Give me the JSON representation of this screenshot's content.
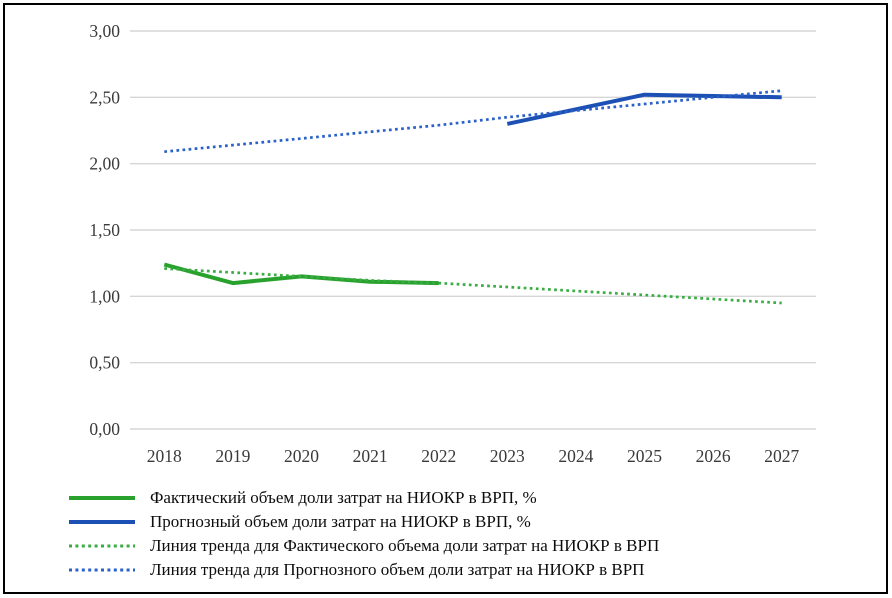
{
  "chart_data": {
    "type": "line",
    "x": [
      "2018",
      "2019",
      "2020",
      "2021",
      "2022",
      "2023",
      "2024",
      "2025",
      "2026",
      "2027"
    ],
    "series": [
      {
        "name": "Фактический объем доли затрат на НИОКР в ВРП, %",
        "color": "#28A22D",
        "style": "solid",
        "values": [
          1.24,
          1.1,
          1.15,
          1.11,
          1.1,
          null,
          null,
          null,
          null,
          null
        ]
      },
      {
        "name": "Прогнозный объем доли затрат на НИОКР в ВРП, %",
        "color": "#1C50B4",
        "style": "solid",
        "values": [
          null,
          null,
          null,
          null,
          null,
          2.3,
          2.41,
          2.52,
          2.51,
          2.5
        ]
      },
      {
        "name": "Линия тренда для Фактического объема доли затрат на НИОКР в ВРП",
        "color": "#39AC43",
        "style": "dotted",
        "values": [
          1.21,
          1.18,
          1.15,
          1.12,
          1.1,
          1.07,
          1.04,
          1.01,
          0.98,
          0.95
        ]
      },
      {
        "name": "Линия тренда для Прогнозного объем доли затрат на НИОКР в ВРП",
        "color": "#2A61C8",
        "style": "dotted",
        "values": [
          2.09,
          2.14,
          2.19,
          2.24,
          2.29,
          2.35,
          2.4,
          2.45,
          2.5,
          2.55
        ]
      }
    ],
    "title": "",
    "xlabel": "",
    "ylabel": "",
    "ylim": [
      0,
      3
    ],
    "ytick_step": 0.5,
    "ytick_labels": [
      "0,00",
      "0,50",
      "1,00",
      "1,50",
      "2,00",
      "2,50",
      "3,00"
    ],
    "grid": "horizontal",
    "grid_color": "#D6D6D6",
    "legend_position": "bottom-left"
  }
}
